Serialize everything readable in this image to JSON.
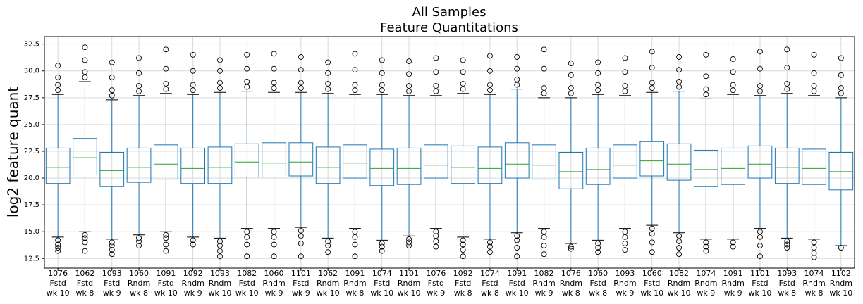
{
  "chart_data": {
    "type": "box",
    "title": [
      "All Samples",
      "Feature Quantitations"
    ],
    "y_label": "log2 feature quant",
    "categories": [
      [
        "1076",
        "Fstd",
        "wk 10"
      ],
      [
        "1062",
        "Fstd",
        "wk 8"
      ],
      [
        "1093",
        "Fstd",
        "wk 9"
      ],
      [
        "1060",
        "Rndm",
        "wk 8"
      ],
      [
        "1091",
        "Fstd",
        "wk 10"
      ],
      [
        "1092",
        "Rndm",
        "wk 9"
      ],
      [
        "1093",
        "Rndm",
        "wk 10"
      ],
      [
        "1082",
        "Fstd",
        "wk 10"
      ],
      [
        "1060",
        "Rndm",
        "wk 9"
      ],
      [
        "1101",
        "Fstd",
        "wk 9"
      ],
      [
        "1062",
        "Rndm",
        "wk 10"
      ],
      [
        "1091",
        "Rndm",
        "wk 8"
      ],
      [
        "1074",
        "Fstd",
        "wk 10"
      ],
      [
        "1101",
        "Rndm",
        "wk 10"
      ],
      [
        "1076",
        "Fstd",
        "wk 9"
      ],
      [
        "1092",
        "Fstd",
        "wk 8"
      ],
      [
        "1074",
        "Fstd",
        "wk 8"
      ],
      [
        "1091",
        "Fstd",
        "wk 10"
      ],
      [
        "1082",
        "Rndm",
        "wk 9"
      ],
      [
        "1076",
        "Rndm",
        "wk 8"
      ],
      [
        "1060",
        "Fstd",
        "wk 8"
      ],
      [
        "1093",
        "Rndm",
        "wk 9"
      ],
      [
        "1060",
        "Fstd",
        "wk 10"
      ],
      [
        "1082",
        "Rndm",
        "wk 10"
      ],
      [
        "1074",
        "Rndm",
        "wk 9"
      ],
      [
        "1091",
        "Rndm",
        "wk 9"
      ],
      [
        "1101",
        "Fstd",
        "wk 10"
      ],
      [
        "1093",
        "Fstd",
        "wk 8"
      ],
      [
        "1074",
        "Rndm",
        "wk 8"
      ],
      [
        "1102",
        "Rndm",
        "wk 10"
      ]
    ],
    "boxes": [
      {
        "low": 14.5,
        "q1": 19.5,
        "median": 21.0,
        "q3": 22.8,
        "high": 27.8,
        "outliers": [
          28.2,
          28.7,
          29.4,
          30.5,
          14.2,
          13.8,
          13.5,
          13.2
        ]
      },
      {
        "low": 15.0,
        "q1": 20.3,
        "median": 21.9,
        "q3": 23.7,
        "high": 29.0,
        "outliers": [
          29.4,
          29.9,
          31.0,
          32.2,
          14.7,
          14.4,
          14.0,
          13.2
        ]
      },
      {
        "low": 14.3,
        "q1": 19.2,
        "median": 20.7,
        "q3": 22.4,
        "high": 27.3,
        "outliers": [
          27.7,
          28.2,
          29.4,
          30.8,
          14.0,
          13.7,
          13.3,
          12.9
        ]
      },
      {
        "low": 14.7,
        "q1": 19.6,
        "median": 21.0,
        "q3": 22.8,
        "high": 27.7,
        "outliers": [
          28.1,
          28.6,
          29.8,
          31.2,
          14.4,
          14.1,
          13.7
        ]
      },
      {
        "low": 15.0,
        "q1": 19.9,
        "median": 21.3,
        "q3": 23.1,
        "high": 27.9,
        "outliers": [
          28.3,
          28.8,
          30.2,
          32.0,
          14.7,
          14.4,
          13.8,
          13.2
        ]
      },
      {
        "low": 14.5,
        "q1": 19.5,
        "median": 20.9,
        "q3": 22.8,
        "high": 27.8,
        "outliers": [
          28.2,
          28.7,
          30.0,
          31.5,
          14.2,
          13.8
        ]
      },
      {
        "low": 14.4,
        "q1": 19.5,
        "median": 21.0,
        "q3": 22.9,
        "high": 28.0,
        "outliers": [
          28.4,
          28.9,
          30.0,
          31.0,
          14.1,
          13.7,
          13.2,
          12.7
        ]
      },
      {
        "low": 15.3,
        "q1": 20.1,
        "median": 21.5,
        "q3": 23.2,
        "high": 28.1,
        "outliers": [
          28.5,
          29.0,
          30.2,
          31.5,
          15.0,
          14.5,
          13.8,
          12.7
        ]
      },
      {
        "low": 15.3,
        "q1": 20.1,
        "median": 21.4,
        "q3": 23.3,
        "high": 28.0,
        "outliers": [
          28.4,
          28.9,
          30.2,
          31.6,
          15.0,
          14.5,
          13.8,
          12.7
        ]
      },
      {
        "low": 15.4,
        "q1": 20.2,
        "median": 21.5,
        "q3": 23.3,
        "high": 28.0,
        "outliers": [
          28.4,
          28.9,
          30.1,
          31.3,
          15.1,
          14.6,
          13.9,
          12.7
        ]
      },
      {
        "low": 14.4,
        "q1": 19.5,
        "median": 21.0,
        "q3": 22.9,
        "high": 27.9,
        "outliers": [
          28.3,
          28.8,
          29.8,
          30.8,
          14.1,
          13.7,
          13.1
        ]
      },
      {
        "low": 15.3,
        "q1": 20.0,
        "median": 21.4,
        "q3": 23.1,
        "high": 27.8,
        "outliers": [
          28.2,
          28.7,
          30.1,
          31.6,
          15.0,
          14.5,
          13.8,
          12.7
        ]
      },
      {
        "low": 14.2,
        "q1": 19.3,
        "median": 20.9,
        "q3": 22.7,
        "high": 27.8,
        "outliers": [
          28.2,
          28.7,
          29.8,
          31.0,
          13.9,
          13.6,
          13.2
        ]
      },
      {
        "low": 14.6,
        "q1": 19.4,
        "median": 20.9,
        "q3": 22.8,
        "high": 27.7,
        "outliers": [
          28.1,
          28.6,
          29.7,
          30.9,
          14.3,
          14.0,
          13.7
        ]
      },
      {
        "low": 15.3,
        "q1": 20.0,
        "median": 21.2,
        "q3": 23.1,
        "high": 27.7,
        "outliers": [
          28.1,
          28.6,
          29.9,
          31.2,
          15.0,
          14.6,
          14.1,
          13.6
        ]
      },
      {
        "low": 14.5,
        "q1": 19.5,
        "median": 21.0,
        "q3": 23.0,
        "high": 27.9,
        "outliers": [
          28.3,
          28.8,
          29.9,
          31.0,
          14.2,
          13.8,
          13.3,
          12.7
        ]
      },
      {
        "low": 14.3,
        "q1": 19.5,
        "median": 20.9,
        "q3": 22.9,
        "high": 27.8,
        "outliers": [
          28.2,
          28.7,
          30.0,
          31.4,
          14.0,
          13.6,
          13.1
        ]
      },
      {
        "low": 14.9,
        "q1": 20.0,
        "median": 21.3,
        "q3": 23.3,
        "high": 28.3,
        "outliers": [
          28.7,
          29.2,
          30.2,
          31.3,
          14.6,
          14.2,
          13.5,
          12.7
        ]
      },
      {
        "low": 15.3,
        "q1": 19.9,
        "median": 21.2,
        "q3": 23.1,
        "high": 27.5,
        "outliers": [
          27.9,
          28.4,
          30.2,
          32.0,
          15.0,
          14.5,
          13.7,
          12.9
        ]
      },
      {
        "low": 13.9,
        "q1": 19.0,
        "median": 20.6,
        "q3": 22.4,
        "high": 27.5,
        "outliers": [
          27.9,
          28.4,
          29.6,
          30.7,
          13.6,
          13.4
        ]
      },
      {
        "low": 14.2,
        "q1": 19.4,
        "median": 20.8,
        "q3": 22.8,
        "high": 27.8,
        "outliers": [
          28.2,
          28.7,
          29.8,
          30.8,
          13.9,
          13.5,
          13.1
        ]
      },
      {
        "low": 15.3,
        "q1": 20.0,
        "median": 21.2,
        "q3": 23.1,
        "high": 27.7,
        "outliers": [
          28.1,
          28.6,
          29.9,
          31.2,
          15.0,
          14.5,
          13.9,
          13.3
        ]
      },
      {
        "low": 15.6,
        "q1": 20.2,
        "median": 21.6,
        "q3": 23.4,
        "high": 28.0,
        "outliers": [
          28.4,
          28.9,
          30.3,
          31.8,
          15.3,
          14.8,
          14.0,
          13.1
        ]
      },
      {
        "low": 14.9,
        "q1": 19.8,
        "median": 21.3,
        "q3": 23.2,
        "high": 28.1,
        "outliers": [
          28.5,
          29.0,
          30.1,
          31.3,
          14.6,
          14.1,
          13.5,
          12.9
        ]
      },
      {
        "low": 14.3,
        "q1": 19.2,
        "median": 20.8,
        "q3": 22.6,
        "high": 27.4,
        "outliers": [
          27.8,
          28.3,
          29.5,
          31.5,
          14.0,
          13.6,
          13.2
        ]
      },
      {
        "low": 14.3,
        "q1": 19.4,
        "median": 20.9,
        "q3": 22.8,
        "high": 27.8,
        "outliers": [
          28.2,
          28.7,
          29.9,
          31.1,
          14.0,
          13.6
        ]
      },
      {
        "low": 15.3,
        "q1": 20.0,
        "median": 21.3,
        "q3": 23.0,
        "high": 27.7,
        "outliers": [
          28.1,
          28.6,
          30.2,
          31.8,
          15.0,
          14.5,
          13.7,
          12.7
        ]
      },
      {
        "low": 14.4,
        "q1": 19.5,
        "median": 21.0,
        "q3": 22.8,
        "high": 27.9,
        "outliers": [
          28.3,
          28.8,
          30.3,
          32.0,
          14.1,
          13.8,
          13.5
        ]
      },
      {
        "low": 14.3,
        "q1": 19.4,
        "median": 20.9,
        "q3": 22.7,
        "high": 27.7,
        "outliers": [
          28.1,
          28.6,
          29.8,
          31.5,
          14.0,
          13.5,
          13.0,
          12.6
        ]
      },
      {
        "low": 13.7,
        "q1": 18.9,
        "median": 20.6,
        "q3": 22.4,
        "high": 27.5,
        "outliers": [
          27.9,
          28.4,
          29.6,
          31.2,
          13.5
        ]
      }
    ],
    "box_color": "#1f77b4",
    "median_color": "#2ca02c",
    "whisker_color": "#1f77b4",
    "cap_color": "#000000",
    "outlier_color": "#000000",
    "ylim": [
      11.6,
      33.2
    ],
    "yticks": [
      12.5,
      {
        "value": 15,
        "label": "15.0"
      },
      17.5,
      {
        "value": 20,
        "label": "20.0"
      },
      22.5,
      {
        "value": 25,
        "label": "25.0"
      },
      27.5,
      {
        "value": 30,
        "label": "30.0"
      },
      32.5
    ],
    "grid": true
  }
}
